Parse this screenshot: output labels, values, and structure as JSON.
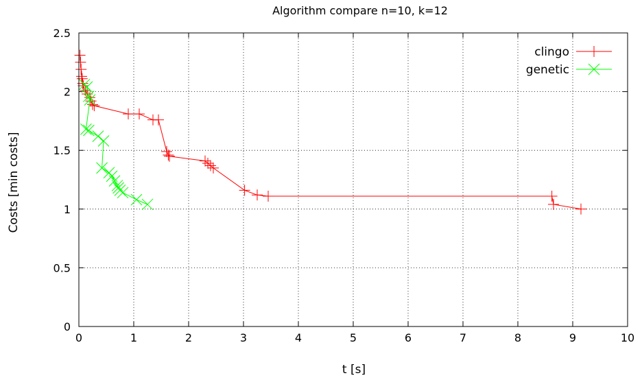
{
  "chart_data": {
    "type": "line",
    "title": "Algorithm compare n=10, k=12",
    "xlabel": "t [s]",
    "ylabel": "Costs [min costs]",
    "xlim": [
      0,
      10
    ],
    "ylim": [
      0,
      2.5
    ],
    "x_ticks": [
      "0",
      "1",
      "2",
      "3",
      "4",
      "5",
      "6",
      "7",
      "8",
      "9",
      "10"
    ],
    "y_ticks": [
      "0",
      "0.5",
      "1",
      "1.5",
      "2",
      "2.5"
    ],
    "grid": true,
    "legend_position": "top-right",
    "series": [
      {
        "name": "clingo",
        "color": "#ff0000",
        "marker": "plus",
        "points": [
          [
            0.02,
            2.31
          ],
          [
            0.03,
            2.25
          ],
          [
            0.04,
            2.19
          ],
          [
            0.05,
            2.13
          ],
          [
            0.06,
            2.11
          ],
          [
            0.07,
            2.07
          ],
          [
            0.08,
            2.05
          ],
          [
            0.12,
            2.01
          ],
          [
            0.15,
            1.98
          ],
          [
            0.2,
            1.95
          ],
          [
            0.22,
            1.92
          ],
          [
            0.25,
            1.89
          ],
          [
            0.28,
            1.88
          ],
          [
            0.9,
            1.81
          ],
          [
            1.1,
            1.81
          ],
          [
            1.35,
            1.76
          ],
          [
            1.45,
            1.76
          ],
          [
            1.6,
            1.49
          ],
          [
            1.63,
            1.46
          ],
          [
            1.65,
            1.45
          ],
          [
            2.3,
            1.41
          ],
          [
            2.35,
            1.39
          ],
          [
            2.4,
            1.37
          ],
          [
            2.45,
            1.35
          ],
          [
            3.02,
            1.16
          ],
          [
            3.25,
            1.12
          ],
          [
            3.45,
            1.11
          ],
          [
            8.62,
            1.11
          ],
          [
            8.65,
            1.04
          ],
          [
            9.15,
            1.0
          ]
        ]
      },
      {
        "name": "genetic",
        "color": "#00ff00",
        "marker": "x",
        "points": [
          [
            0.1,
            2.06
          ],
          [
            0.15,
            2.04
          ],
          [
            0.18,
            1.96
          ],
          [
            0.2,
            1.93
          ],
          [
            0.13,
            1.68
          ],
          [
            0.18,
            1.67
          ],
          [
            0.35,
            1.62
          ],
          [
            0.45,
            1.58
          ],
          [
            0.42,
            1.35
          ],
          [
            0.55,
            1.31
          ],
          [
            0.6,
            1.28
          ],
          [
            0.65,
            1.24
          ],
          [
            0.7,
            1.2
          ],
          [
            0.72,
            1.18
          ],
          [
            0.75,
            1.16
          ],
          [
            0.8,
            1.14
          ],
          [
            1.05,
            1.08
          ],
          [
            1.25,
            1.04
          ]
        ]
      }
    ]
  }
}
